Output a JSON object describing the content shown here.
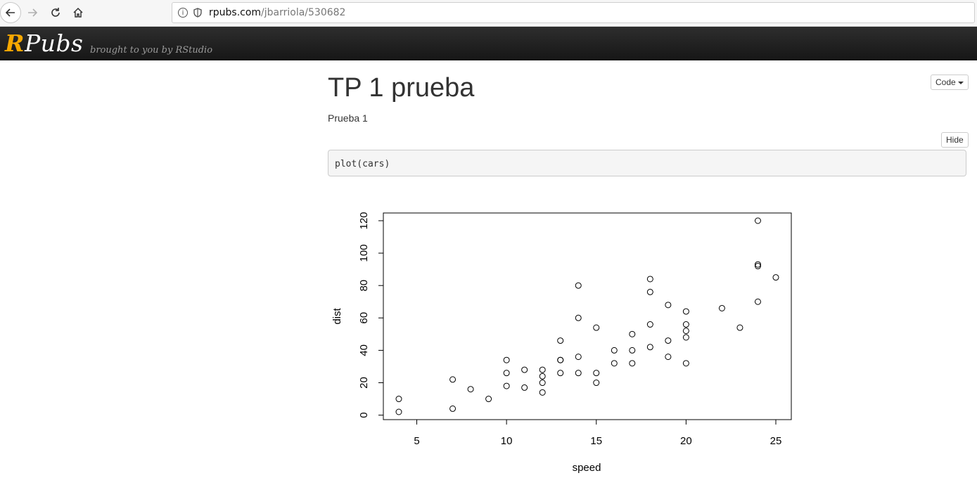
{
  "browser": {
    "url_host": "rpubs.com",
    "url_path": "/jbarriola/530682",
    "info_icon": "info-icon",
    "shield_icon": "shield-icon"
  },
  "header": {
    "logo_r": "R",
    "logo_rest": "Pubs",
    "tagline": "brought to you by RStudio"
  },
  "doc": {
    "title": "TP 1 prueba",
    "subtitle": "Prueba 1",
    "code_button": "Code",
    "hide_button": "Hide",
    "code": "plot(cars)"
  },
  "chart_data": {
    "type": "scatter",
    "xlabel": "speed",
    "ylabel": "dist",
    "xlim": [
      4,
      25
    ],
    "ylim": [
      2,
      120
    ],
    "xticks": [
      5,
      10,
      15,
      20,
      25
    ],
    "yticks": [
      0,
      20,
      40,
      60,
      80,
      100,
      120
    ],
    "grid": false,
    "points": [
      [
        4,
        2
      ],
      [
        4,
        10
      ],
      [
        7,
        4
      ],
      [
        7,
        22
      ],
      [
        8,
        16
      ],
      [
        9,
        10
      ],
      [
        10,
        18
      ],
      [
        10,
        26
      ],
      [
        10,
        34
      ],
      [
        11,
        17
      ],
      [
        11,
        28
      ],
      [
        12,
        14
      ],
      [
        12,
        20
      ],
      [
        12,
        24
      ],
      [
        12,
        28
      ],
      [
        13,
        26
      ],
      [
        13,
        34
      ],
      [
        13,
        34
      ],
      [
        13,
        46
      ],
      [
        14,
        26
      ],
      [
        14,
        36
      ],
      [
        14,
        60
      ],
      [
        14,
        80
      ],
      [
        15,
        20
      ],
      [
        15,
        26
      ],
      [
        15,
        54
      ],
      [
        16,
        32
      ],
      [
        16,
        40
      ],
      [
        17,
        32
      ],
      [
        17,
        40
      ],
      [
        17,
        50
      ],
      [
        18,
        42
      ],
      [
        18,
        56
      ],
      [
        18,
        76
      ],
      [
        18,
        84
      ],
      [
        19,
        36
      ],
      [
        19,
        46
      ],
      [
        19,
        68
      ],
      [
        20,
        32
      ],
      [
        20,
        48
      ],
      [
        20,
        52
      ],
      [
        20,
        56
      ],
      [
        20,
        64
      ],
      [
        22,
        66
      ],
      [
        23,
        54
      ],
      [
        24,
        70
      ],
      [
        24,
        92
      ],
      [
        24,
        93
      ],
      [
        24,
        120
      ],
      [
        25,
        85
      ]
    ]
  }
}
